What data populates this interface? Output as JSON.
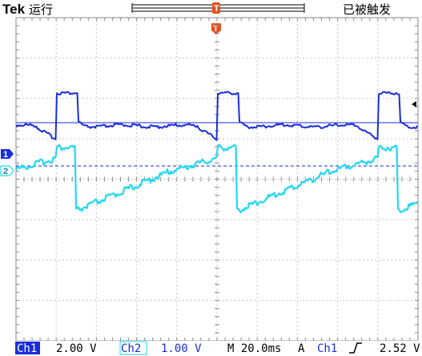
{
  "header": {
    "brand": "Tek",
    "run_state": "运行",
    "trigger_status": "已被触发",
    "trigger_marker_label": "T"
  },
  "channels": {
    "ch1": {
      "marker_label": "1",
      "color": "#1a2ed8"
    },
    "ch2": {
      "marker_label": "2",
      "color": "#22d8f0"
    }
  },
  "status_bar": {
    "ch1_label": "Ch1",
    "ch1_scale": "2.00 V",
    "ch2_label": "Ch2",
    "ch2_scale": "1.00 V",
    "timebase": "M 20.0ms",
    "trigger_mode": "A",
    "trigger_source": "Ch1",
    "trigger_slope_icon": "rising-edge-icon",
    "trigger_level": "2.52 V"
  },
  "colors": {
    "trigger_marker": "#e8501e",
    "grid": "#8a8a8a",
    "trigger_level_line": "#1a2ed8"
  }
}
